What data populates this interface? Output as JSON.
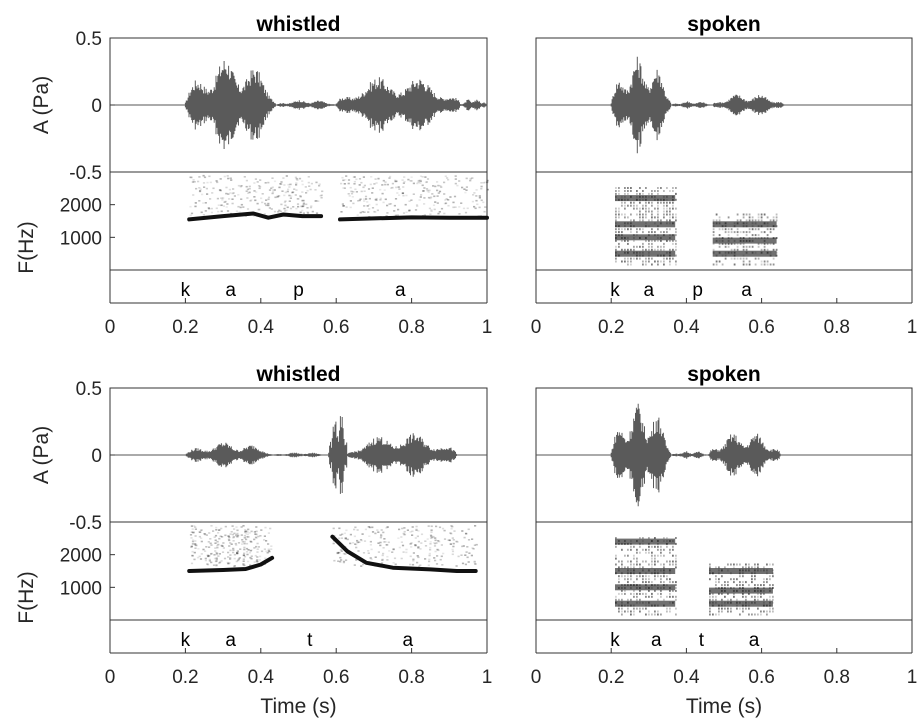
{
  "chart_data": [
    {
      "type": "waveform+spectrogram",
      "title": "whistled",
      "xlim": [
        0,
        1
      ],
      "x_ticks": [
        "0",
        "0.2",
        "0.4",
        "0.6",
        "0.8",
        "1"
      ],
      "xlabel": "",
      "waveform": {
        "ylabel": "A (Pa)",
        "ylim": [
          -0.5,
          0.5
        ],
        "y_ticks": [
          "0.5",
          "0",
          "-0.5"
        ],
        "segments": [
          {
            "t0": 0.2,
            "t1": 0.44,
            "peak": 0.37
          },
          {
            "t0": 0.44,
            "t1": 0.6,
            "peak": 0.04
          },
          {
            "t0": 0.6,
            "t1": 0.93,
            "peak": 0.23
          },
          {
            "t0": 0.93,
            "t1": 1.0,
            "peak": 0.05
          }
        ]
      },
      "spectrogram": {
        "ylabel": "F(Hz)",
        "y_ticks": [
          "2000",
          "1000"
        ],
        "ylim": [
          0,
          3000
        ],
        "contours": [
          {
            "t": [
              0.21,
              0.3,
              0.38,
              0.42,
              0.46,
              0.51,
              0.56
            ],
            "f": [
              1550,
              1650,
              1730,
              1600,
              1700,
              1650,
              1650
            ]
          },
          {
            "t": [
              0.61,
              0.7,
              0.8,
              0.9,
              1.0
            ],
            "f": [
              1550,
              1580,
              1610,
              1600,
              1600
            ]
          }
        ]
      },
      "phonemes": [
        {
          "t": 0.2,
          "label": "k"
        },
        {
          "t": 0.32,
          "label": "a"
        },
        {
          "t": 0.5,
          "label": "p"
        },
        {
          "t": 0.77,
          "label": "a"
        }
      ]
    },
    {
      "type": "waveform+spectrogram",
      "title": "spoken",
      "xlim": [
        0,
        1
      ],
      "x_ticks": [
        "0",
        "0.2",
        "0.4",
        "0.6",
        "0.8",
        "1"
      ],
      "xlabel": "",
      "waveform": {
        "ylim": [
          -0.5,
          0.5
        ],
        "segments": [
          {
            "t0": 0.2,
            "t1": 0.36,
            "peak": 0.37
          },
          {
            "t0": 0.36,
            "t1": 0.47,
            "peak": 0.03
          },
          {
            "t0": 0.47,
            "t1": 0.66,
            "peak": 0.09
          }
        ]
      },
      "spectrogram": {
        "ylim": [
          0,
          3000
        ],
        "formants": [
          {
            "t0": 0.21,
            "t1": 0.37,
            "f": [
              500,
              1000,
              1400,
              2200
            ]
          },
          {
            "t0": 0.47,
            "t1": 0.64,
            "f": [
              500,
              900,
              1400
            ]
          }
        ]
      },
      "phonemes": [
        {
          "t": 0.21,
          "label": "k"
        },
        {
          "t": 0.3,
          "label": "a"
        },
        {
          "t": 0.43,
          "label": "p"
        },
        {
          "t": 0.56,
          "label": "a"
        }
      ]
    },
    {
      "type": "waveform+spectrogram",
      "title": "whistled",
      "xlim": [
        0,
        1
      ],
      "x_ticks": [
        "0",
        "0.2",
        "0.4",
        "0.6",
        "0.8",
        "1"
      ],
      "xlabel": "Time (s)",
      "waveform": {
        "ylabel": "A (Pa)",
        "ylim": [
          -0.5,
          0.5
        ],
        "y_ticks": [
          "0.5",
          "0",
          "-0.5"
        ],
        "segments": [
          {
            "t0": 0.2,
            "t1": 0.43,
            "peak": 0.1
          },
          {
            "t0": 0.43,
            "t1": 0.58,
            "peak": 0.02
          },
          {
            "t0": 0.58,
            "t1": 0.63,
            "peak": 0.38
          },
          {
            "t0": 0.63,
            "t1": 0.92,
            "peak": 0.17
          }
        ]
      },
      "spectrogram": {
        "ylabel": "F(Hz)",
        "y_ticks": [
          "2000",
          "1000"
        ],
        "ylim": [
          0,
          3000
        ],
        "contours": [
          {
            "t": [
              0.21,
              0.3,
              0.36,
              0.4,
              0.43
            ],
            "f": [
              1500,
              1530,
              1560,
              1700,
              1900
            ]
          },
          {
            "t": [
              0.59,
              0.63,
              0.68,
              0.75,
              0.85,
              0.92,
              0.97
            ],
            "f": [
              2550,
              2100,
              1750,
              1600,
              1550,
              1500,
              1500
            ]
          }
        ]
      },
      "phonemes": [
        {
          "t": 0.2,
          "label": "k"
        },
        {
          "t": 0.32,
          "label": "a"
        },
        {
          "t": 0.53,
          "label": "t"
        },
        {
          "t": 0.79,
          "label": "a"
        }
      ]
    },
    {
      "type": "waveform+spectrogram",
      "title": "spoken",
      "xlim": [
        0,
        1
      ],
      "x_ticks": [
        "0",
        "0.2",
        "0.4",
        "0.6",
        "0.8",
        "1"
      ],
      "xlabel": "Time (s)",
      "waveform": {
        "ylim": [
          -0.5,
          0.5
        ],
        "segments": [
          {
            "t0": 0.2,
            "t1": 0.36,
            "peak": 0.4
          },
          {
            "t0": 0.36,
            "t1": 0.46,
            "peak": 0.03
          },
          {
            "t0": 0.46,
            "t1": 0.65,
            "peak": 0.18
          }
        ]
      },
      "spectrogram": {
        "ylim": [
          0,
          3000
        ],
        "formants": [
          {
            "t0": 0.21,
            "t1": 0.37,
            "f": [
              500,
              1000,
              1500,
              2400
            ]
          },
          {
            "t0": 0.46,
            "t1": 0.63,
            "f": [
              500,
              900,
              1500
            ]
          }
        ]
      },
      "phonemes": [
        {
          "t": 0.21,
          "label": "k"
        },
        {
          "t": 0.32,
          "label": "a"
        },
        {
          "t": 0.44,
          "label": "t"
        },
        {
          "t": 0.58,
          "label": "a"
        }
      ]
    }
  ]
}
